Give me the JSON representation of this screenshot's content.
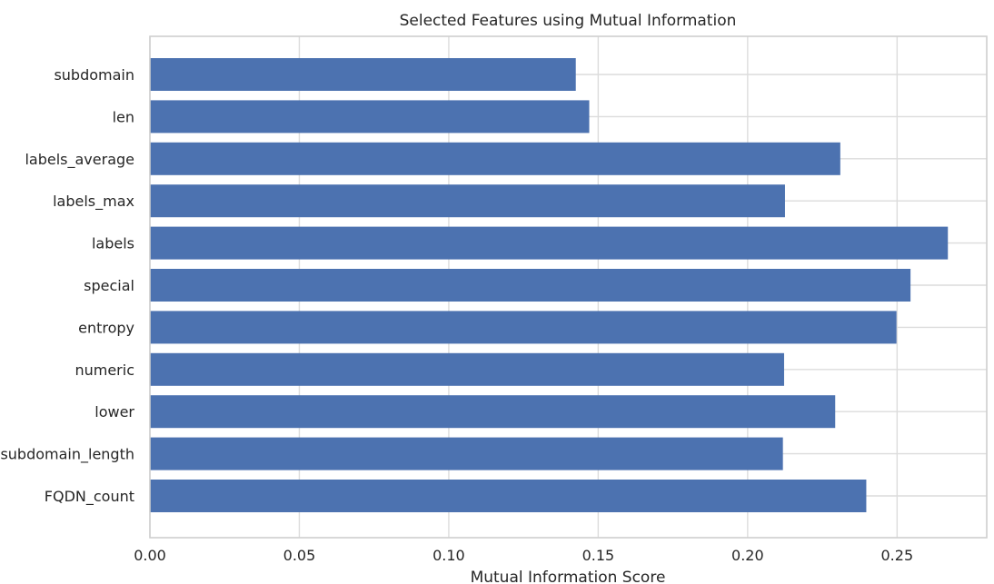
{
  "chart_data": {
    "type": "bar",
    "orientation": "horizontal",
    "title": "Selected Features using Mutual Information",
    "xlabel": "Mutual Information Score",
    "ylabel": "",
    "xlim": [
      0.0,
      0.28
    ],
    "xticks": [
      "0.00",
      "0.05",
      "0.10",
      "0.15",
      "0.20",
      "0.25"
    ],
    "xtick_values": [
      0.0,
      0.05,
      0.1,
      0.15,
      0.2,
      0.25
    ],
    "grid": true,
    "bar_color": "#4c72b0",
    "categories": [
      "subdomain",
      "len",
      "labels_average",
      "labels_max",
      "labels",
      "special",
      "entropy",
      "numeric",
      "lower",
      "subdomain_length",
      "FQDN_count"
    ],
    "values": [
      0.1425,
      0.147,
      0.231,
      0.2125,
      0.267,
      0.2545,
      0.2498,
      0.2122,
      0.2293,
      0.2118,
      0.2397
    ]
  }
}
